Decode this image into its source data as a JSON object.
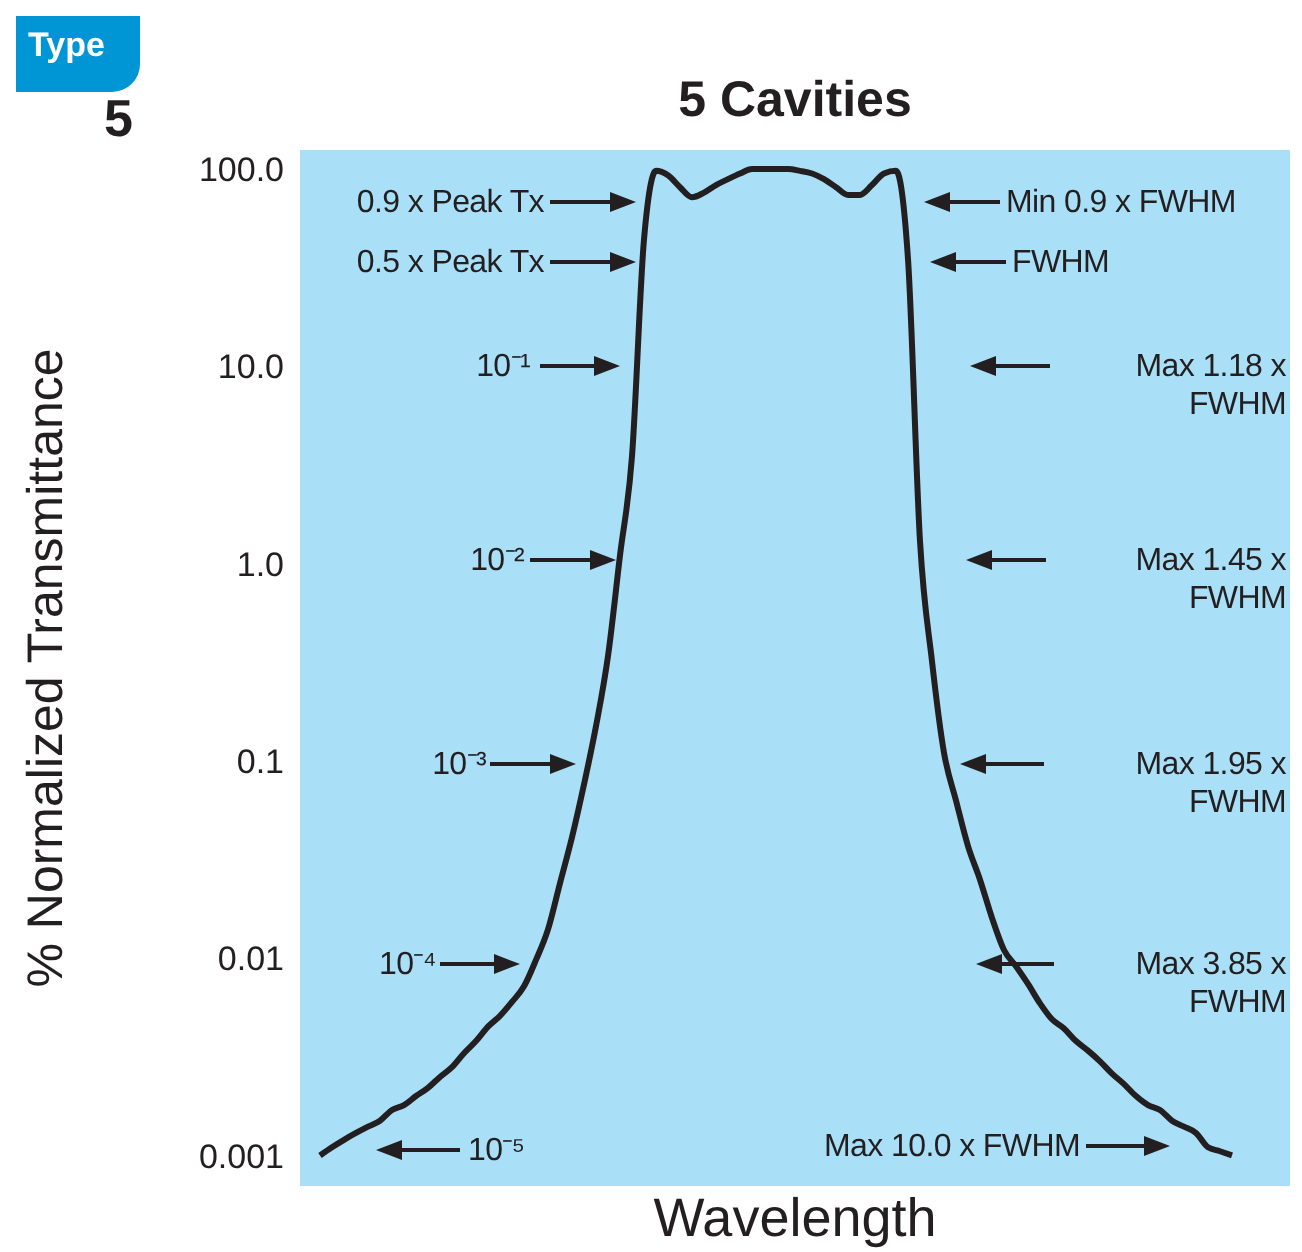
{
  "chart_data": {
    "type": "line",
    "title": "5 Cavities",
    "xlabel": "Wavelength",
    "ylabel": "% Normalized Transmittance",
    "log": "y",
    "tick_labels": "y",
    "marker": "none",
    "line_style": "solid",
    "ylim": [
      0.0007,
      125
    ],
    "yticks": [
      {
        "value": 100,
        "label": "100.0"
      },
      {
        "value": 10,
        "label": "10.0"
      },
      {
        "value": 1,
        "label": "1.0"
      },
      0.1,
      0.01,
      0.001
    ],
    "categories": [
      null,
      null,
      null,
      null,
      null,
      null,
      null,
      null,
      null,
      null,
      null,
      null,
      null,
      null,
      null,
      null,
      null,
      null,
      null,
      null,
      null,
      null,
      null,
      null,
      null,
      null,
      null,
      null,
      null,
      null,
      null,
      null,
      null,
      null,
      null,
      null,
      null,
      null,
      null,
      null,
      null,
      null,
      null,
      null,
      null,
      null,
      null,
      null,
      null,
      null,
      null,
      null,
      null,
      null,
      null,
      null,
      null,
      null,
      null,
      null,
      null,
      null,
      null,
      null,
      null,
      null,
      null,
      null,
      null,
      null,
      null,
      null,
      null,
      null,
      null,
      null,
      null
    ],
    "series": [
      {
        "color": "#231f20",
        "values": [
          0.001,
          0.0011,
          0.0012,
          0.0013,
          0.0014,
          0.0015,
          0.0017,
          0.0018,
          0.002,
          0.0022,
          0.0025,
          0.0028,
          0.0033,
          0.0038,
          0.0045,
          0.0051,
          0.006,
          0.0072,
          0.0098,
          0.014,
          0.024,
          0.041,
          0.076,
          0.15,
          0.34,
          1.1,
          3.5,
          44,
          98,
          93,
          81,
          72,
          76,
          83,
          89,
          95,
          100,
          100,
          100,
          100,
          98,
          95,
          89,
          81,
          74,
          74,
          83,
          95,
          98,
          35,
          1.3,
          0.32,
          0.11,
          0.063,
          0.037,
          0.025,
          0.016,
          0.011,
          0.0091,
          0.0074,
          0.0059,
          0.0049,
          0.0044,
          0.0038,
          0.0034,
          0.003,
          0.0026,
          0.0023,
          0.002,
          0.0018,
          0.0017,
          0.0015,
          0.0014,
          0.0013,
          0.0011,
          0.00105,
          0.001
        ]
      }
    ],
    "annotations": [
      "Type",
      "5",
      "0.9 x Peak Tx",
      "0.5 x Peak Tx",
      "10⁻¹",
      "10⁻²",
      "10⁻³",
      "10⁻⁴",
      "10⁻⁵",
      "Min 0.9 x FWHM",
      "FWHM",
      "Max 1.18 x FWHM",
      "Max 1.45 x FWHM",
      "Max 1.95 x FWHM",
      "Max 3.85 x FWHM",
      "Max 10.0 x FWHM"
    ]
  }
}
